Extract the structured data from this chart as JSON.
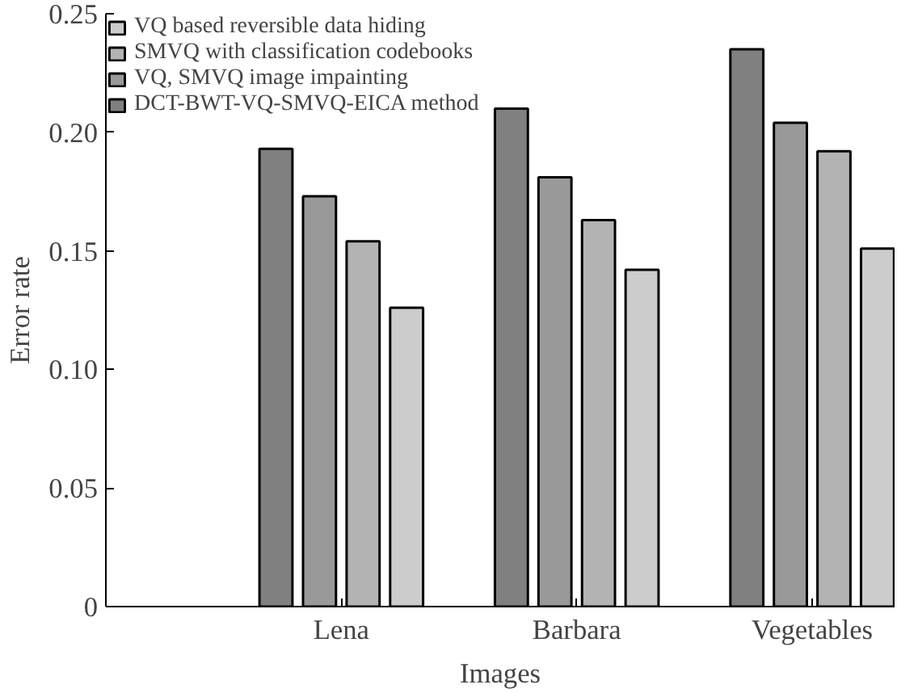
{
  "chart_data": {
    "type": "bar",
    "xlabel": "Images",
    "ylabel": "Error rate",
    "categories": [
      "Lena",
      "Barbara",
      "Vegetables"
    ],
    "series": [
      {
        "name": "VQ based reversible data hiding",
        "color": "#cccccc",
        "values": [
          0.126,
          0.142,
          0.151
        ]
      },
      {
        "name": "SMVQ with classification codebooks",
        "color": "#b3b3b3",
        "values": [
          0.154,
          0.163,
          0.192
        ]
      },
      {
        "name": "VQ, SMVQ image impainting",
        "color": "#999999",
        "values": [
          0.173,
          0.181,
          0.204
        ]
      },
      {
        "name": "DCT-BWT-VQ-SMVQ-EICA method",
        "color": "#808080",
        "values": [
          0.193,
          0.21,
          0.235
        ]
      }
    ],
    "ylim": [
      0,
      0.25
    ],
    "yticks": [
      0,
      0.05,
      {
        "value": 0.1,
        "label": "0.10"
      },
      0.15,
      {
        "value": 0.2,
        "label": "0.20"
      },
      0.25
    ],
    "grid": false,
    "legend": "top left"
  }
}
